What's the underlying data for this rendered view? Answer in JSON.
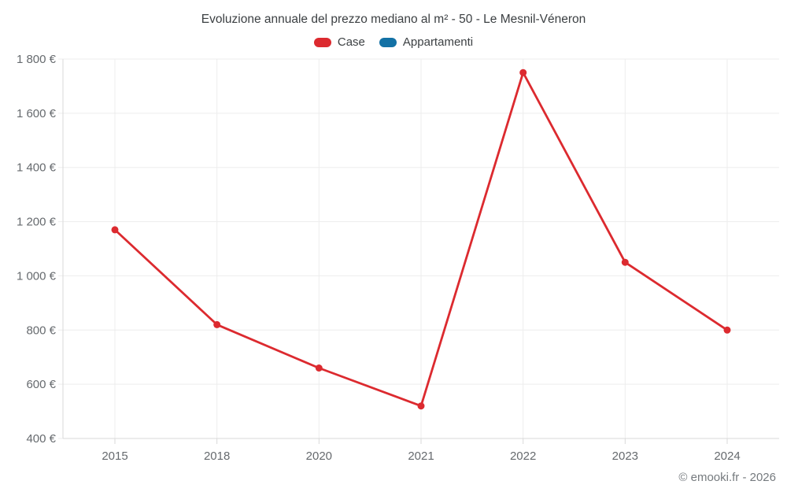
{
  "chart_data": {
    "type": "line",
    "title": "Evoluzione annuale del prezzo mediano al m² - 50 - Le Mesnil-Véneron",
    "categories": [
      "2015",
      "2018",
      "2020",
      "2021",
      "2022",
      "2023",
      "2024"
    ],
    "series": [
      {
        "name": "Case",
        "color": "#dc2a2f",
        "values": [
          1170,
          820,
          660,
          520,
          1750,
          1050,
          800
        ]
      },
      {
        "name": "Appartamenti",
        "color": "#1371a5",
        "values": []
      }
    ],
    "xlabel": "",
    "ylabel": "",
    "ylim": [
      400,
      1800
    ],
    "ytick_step": 200,
    "ytick_labels": [
      "400 €",
      "600 €",
      "800 €",
      "1 000 €",
      "1 200 €",
      "1 400 €",
      "1 600 €",
      "1 800 €"
    ],
    "grid": true,
    "legend_position": "top",
    "colors": {
      "grid_line": "#ededed",
      "axis_line": "#d9d9d9",
      "tick_label": "#666a6e"
    }
  },
  "footer": {
    "copyright": "© emooki.fr - 2026"
  }
}
